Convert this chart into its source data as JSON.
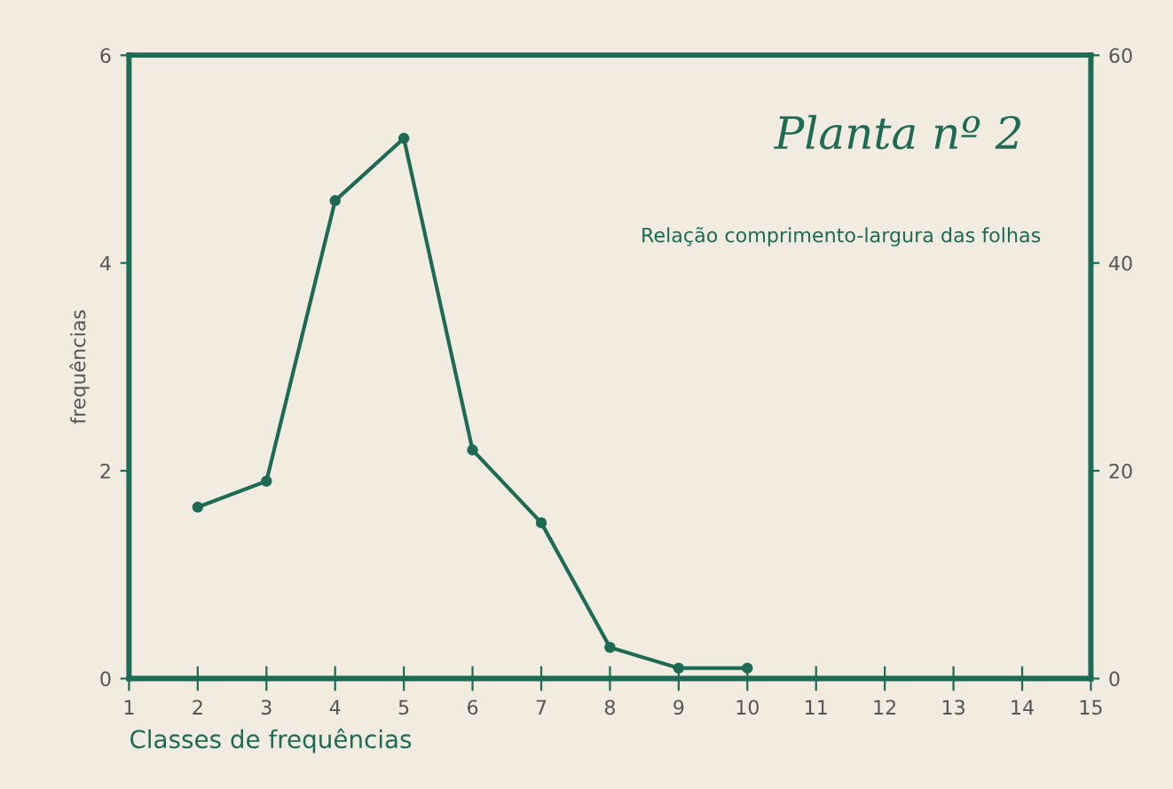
{
  "chart_data": {
    "type": "line",
    "title": "Planta nº 2",
    "subtitle": "Relação comprimento-largura das folhas",
    "xlabel": "Classes de frequências",
    "ylabel": "frequências",
    "x": [
      2,
      3,
      4,
      5,
      6,
      7,
      8,
      9,
      10
    ],
    "series": [
      {
        "color": "#1e6b55",
        "values": [
          1.65,
          1.9,
          4.6,
          5.2,
          2.2,
          1.5,
          0.3,
          0.1,
          0.1
        ]
      }
    ],
    "xlim": [
      1,
      15
    ],
    "xticks": [
      1,
      2,
      3,
      4,
      5,
      6,
      7,
      8,
      9,
      10,
      11,
      12,
      13,
      14,
      15
    ],
    "ylim": [
      0,
      6
    ],
    "yticks": [
      0,
      2,
      4,
      6
    ],
    "y2lim": [
      0,
      60
    ],
    "y2ticks": [
      0,
      20,
      40,
      60
    ],
    "marker": "circle",
    "line_style": "solid",
    "grid": false,
    "legend": false
  }
}
